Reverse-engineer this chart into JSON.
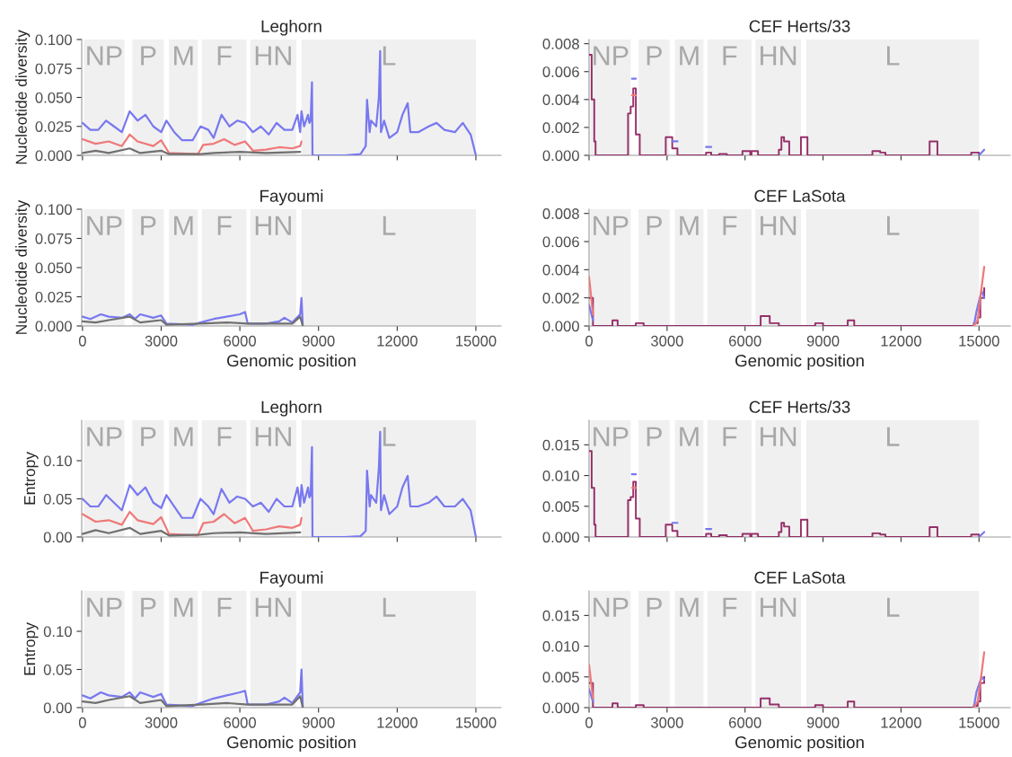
{
  "chart_data": [
    {
      "type": "line",
      "title": "Leghorn",
      "ylabel": "Nucleotide diversity",
      "xlim": [
        -30,
        15960
      ],
      "ylim": [
        0,
        0.1
      ],
      "xticks": [
        0,
        3000,
        6000,
        9000,
        12000,
        15000
      ],
      "yticks": [
        {
          "value": 0,
          "label": "0.000"
        },
        0.025,
        {
          "value": 0.05,
          "label": "0.050"
        },
        0.075,
        {
          "value": 0.1,
          "label": "0.100"
        }
      ],
      "tick_labels": "y",
      "bands": [
        {
          "axis": "x",
          "from": 50,
          "to": 1600,
          "label": "NP",
          "color": "#f0f0f0"
        },
        {
          "axis": "x",
          "from": 1900,
          "to": 3100,
          "label": "P",
          "color": "#f0f0f0"
        },
        {
          "axis": "x",
          "from": 3300,
          "to": 4400,
          "label": "M",
          "color": "#f0f0f0"
        },
        {
          "axis": "x",
          "from": 4550,
          "to": 6250,
          "label": "F",
          "color": "#f0f0f0"
        },
        {
          "axis": "x",
          "from": 6400,
          "to": 8150,
          "label": "HN",
          "color": "#f0f0f0"
        },
        {
          "axis": "x",
          "from": 8350,
          "to": 15000,
          "label": "L",
          "color": "#f0f0f0"
        }
      ],
      "series": [
        {
          "color": "#7878f0",
          "x": [
            0,
            300,
            600,
            900,
            1200,
            1500,
            1800,
            2100,
            2400,
            2700,
            3000,
            3200,
            3500,
            3800,
            4200,
            4500,
            4800,
            5000,
            5300,
            5600,
            5900,
            6200,
            6500,
            6800,
            7100,
            7400,
            7700,
            8000,
            8200,
            8300,
            8350,
            8450,
            8600,
            8650,
            8700,
            8750,
            8770,
            9000,
            10000,
            10600,
            10800,
            10850,
            10950,
            11000,
            11200,
            11300,
            11350,
            11380,
            11500,
            11700,
            12000,
            12200,
            12400,
            12500,
            12800,
            13200,
            13500,
            13800,
            14200,
            14500,
            14800,
            15000
          ],
          "values": [
            0.028,
            0.022,
            0.022,
            0.03,
            0.025,
            0.02,
            0.038,
            0.03,
            0.035,
            0.025,
            0.02,
            0.03,
            0.02,
            0.013,
            0.013,
            0.025,
            0.022,
            0.015,
            0.035,
            0.025,
            0.03,
            0.028,
            0.02,
            0.025,
            0.018,
            0.028,
            0.022,
            0.022,
            0.035,
            0.02,
            0.038,
            0.025,
            0.035,
            0.028,
            0.03,
            0.063,
            0,
            0,
            0,
            0.001,
            0.008,
            0.048,
            0.02,
            0.03,
            0.025,
            0.05,
            0.09,
            0.02,
            0.03,
            0.015,
            0.02,
            0.035,
            0.045,
            0.02,
            0.02,
            0.025,
            0.028,
            0.022,
            0.02,
            0.028,
            0.018,
            0
          ]
        },
        {
          "color": "#f07878",
          "x": [
            0,
            500,
            1000,
            1500,
            1800,
            2100,
            2700,
            3000,
            3300,
            4400,
            4600,
            5000,
            5400,
            5800,
            6200,
            6500,
            7000,
            7500,
            8000,
            8300,
            8350
          ],
          "values": [
            0.014,
            0.01,
            0.012,
            0.008,
            0.018,
            0.012,
            0.008,
            0.013,
            0.002,
            0.001,
            0.009,
            0.01,
            0.014,
            0.009,
            0.012,
            0.004,
            0.005,
            0.007,
            0.006,
            0.008,
            0.012
          ]
        },
        {
          "color": "#707070",
          "x": [
            0,
            500,
            1000,
            1800,
            2200,
            3000,
            3300,
            4500,
            5000,
            6000,
            7000,
            8300
          ],
          "values": [
            0.002,
            0.004,
            0.002,
            0.006,
            0.002,
            0.004,
            0.001,
            0.001,
            0.002,
            0.003,
            0.002,
            0.003
          ]
        }
      ]
    },
    {
      "type": "line",
      "title": "CEF Herts/33",
      "xlim": [
        0,
        16200
      ],
      "ylim": [
        0,
        0.0083
      ],
      "xticks": [
        0,
        3000,
        6000,
        9000,
        12000,
        15000
      ],
      "yticks": [
        {
          "value": 0,
          "label": "0.000"
        },
        0.002,
        0.004,
        0.006,
        0.008
      ],
      "tick_labels": "y",
      "bands": [
        {
          "axis": "x",
          "from": 50,
          "to": 1600,
          "label": "NP",
          "color": "#f0f0f0"
        },
        {
          "axis": "x",
          "from": 1900,
          "to": 3100,
          "label": "P",
          "color": "#f0f0f0"
        },
        {
          "axis": "x",
          "from": 3300,
          "to": 4400,
          "label": "M",
          "color": "#f0f0f0"
        },
        {
          "axis": "x",
          "from": 4550,
          "to": 6250,
          "label": "F",
          "color": "#f0f0f0"
        },
        {
          "axis": "x",
          "from": 6400,
          "to": 8150,
          "label": "HN",
          "color": "#f0f0f0"
        },
        {
          "axis": "x",
          "from": 8350,
          "to": 15000,
          "label": "L",
          "color": "#f0f0f0"
        }
      ],
      "series": [
        {
          "color": "#8b1a5a",
          "type": "step",
          "x": [
            0,
            100,
            200,
            250,
            1500,
            1600,
            1700,
            1800,
            1950,
            2950,
            3200,
            3400,
            4500,
            4700,
            5000,
            5300,
            5900,
            6200,
            6250,
            6500,
            7300,
            7400,
            7500,
            7700,
            8150,
            8400,
            10900,
            11200,
            11400,
            13100,
            13400,
            14700,
            15000
          ],
          "values": [
            0.0072,
            0.004,
            0.001,
            0,
            0.003,
            0.0035,
            0.0048,
            0.0015,
            0,
            0.0013,
            0.0005,
            0,
            0.0002,
            0,
            0.0001,
            0,
            0.0003,
            0,
            0.0003,
            0,
            0.0004,
            0.0013,
            0.001,
            0,
            0.0013,
            0,
            0.0003,
            0.0002,
            0,
            0.001,
            0,
            0.0002,
            0
          ]
        },
        {
          "color": "#7878f0",
          "x": [
            1650,
            1800
          ],
          "values": [
            0.0055,
            0.0055
          ]
        },
        {
          "color": "#7878f0",
          "x": [
            3200,
            3400
          ],
          "values": [
            0.001,
            0.001
          ]
        },
        {
          "color": "#7878f0",
          "x": [
            4500,
            4700
          ],
          "values": [
            0.0006,
            0.0006
          ]
        },
        {
          "color": "#7878f0",
          "x": [
            15000,
            15200
          ],
          "values": [
            0,
            0.0004
          ]
        },
        {
          "color": "#f07878",
          "x": [
            1650,
            1800
          ],
          "values": [
            0.0043,
            0.0043
          ]
        }
      ]
    },
    {
      "type": "line",
      "title": "Fayoumi",
      "ylabel": "Nucleotide diversity",
      "xlabel": "Genomic position",
      "xlim": [
        -30,
        15960
      ],
      "ylim": [
        0,
        0.1
      ],
      "xticks": [
        0,
        3000,
        6000,
        9000,
        12000,
        15000
      ],
      "yticks": [
        {
          "value": 0,
          "label": "0.000"
        },
        0.025,
        {
          "value": 0.05,
          "label": "0.050"
        },
        0.075,
        {
          "value": 0.1,
          "label": "0.100"
        }
      ],
      "bands": [
        {
          "axis": "x",
          "from": 50,
          "to": 1600,
          "label": "NP",
          "color": "#f0f0f0"
        },
        {
          "axis": "x",
          "from": 1900,
          "to": 3100,
          "label": "P",
          "color": "#f0f0f0"
        },
        {
          "axis": "x",
          "from": 3300,
          "to": 4400,
          "label": "M",
          "color": "#f0f0f0"
        },
        {
          "axis": "x",
          "from": 4550,
          "to": 6250,
          "label": "F",
          "color": "#f0f0f0"
        },
        {
          "axis": "x",
          "from": 6400,
          "to": 8150,
          "label": "HN",
          "color": "#f0f0f0"
        },
        {
          "axis": "x",
          "from": 8350,
          "to": 15000,
          "label": "L",
          "color": "#f0f0f0"
        }
      ],
      "series": [
        {
          "color": "#7878f0",
          "x": [
            0,
            300,
            700,
            1000,
            1500,
            1800,
            2000,
            2200,
            2700,
            3000,
            3200,
            4200,
            4500,
            5000,
            5500,
            6000,
            6200,
            6300,
            7000,
            7500,
            7700,
            8000,
            8300,
            8350,
            8400
          ],
          "values": [
            0.008,
            0.006,
            0.01,
            0.008,
            0.007,
            0.01,
            0.006,
            0.01,
            0.007,
            0.009,
            0.002,
            0.001,
            0.003,
            0.006,
            0.008,
            0.01,
            0.012,
            0.002,
            0.002,
            0.004,
            0.007,
            0.003,
            0.01,
            0.024,
            0
          ]
        },
        {
          "color": "#707070",
          "x": [
            0,
            500,
            1000,
            1800,
            2200,
            3000,
            3200,
            4500,
            5500,
            6300,
            8000,
            8300,
            8400
          ],
          "values": [
            0.004,
            0.003,
            0.005,
            0.008,
            0.003,
            0.005,
            0.001,
            0.002,
            0.003,
            0.002,
            0.002,
            0.008,
            0
          ]
        }
      ]
    },
    {
      "type": "line",
      "title": "CEF LaSota",
      "xlabel": "Genomic position",
      "xlim": [
        0,
        16200
      ],
      "ylim": [
        0,
        0.0083
      ],
      "xticks": [
        0,
        3000,
        6000,
        9000,
        12000,
        15000
      ],
      "yticks": [
        {
          "value": 0,
          "label": "0.000"
        },
        0.002,
        0.004,
        0.006,
        0.008
      ],
      "bands": [
        {
          "axis": "x",
          "from": 50,
          "to": 1600,
          "label": "NP",
          "color": "#f0f0f0"
        },
        {
          "axis": "x",
          "from": 1900,
          "to": 3100,
          "label": "P",
          "color": "#f0f0f0"
        },
        {
          "axis": "x",
          "from": 3300,
          "to": 4400,
          "label": "M",
          "color": "#f0f0f0"
        },
        {
          "axis": "x",
          "from": 4550,
          "to": 6250,
          "label": "F",
          "color": "#f0f0f0"
        },
        {
          "axis": "x",
          "from": 6400,
          "to": 8150,
          "label": "HN",
          "color": "#f0f0f0"
        },
        {
          "axis": "x",
          "from": 8350,
          "to": 15000,
          "label": "L",
          "color": "#f0f0f0"
        }
      ],
      "series": [
        {
          "color": "#8b1a5a",
          "type": "step",
          "x": [
            0,
            150,
            900,
            1100,
            1800,
            2100,
            6600,
            6950,
            7300,
            8700,
            9000,
            9950,
            10200,
            14800,
            14950,
            15050,
            15200
          ],
          "values": [
            0.002,
            0,
            0.0004,
            0,
            0.0002,
            0,
            0.0007,
            0.0002,
            0,
            0.0002,
            0,
            0.0004,
            0,
            0.0002,
            0.0006,
            0.002,
            0.0027
          ]
        },
        {
          "color": "#7878f0",
          "x": [
            0,
            150
          ],
          "values": [
            0.0015,
            0.0004
          ]
        },
        {
          "color": "#7878f0",
          "x": [
            14800,
            14900,
            15100,
            15200
          ],
          "values": [
            0,
            0.001,
            0.0025,
            0.002
          ]
        },
        {
          "color": "#f07878",
          "x": [
            0,
            150
          ],
          "values": [
            0.0035,
            0.0008
          ]
        },
        {
          "color": "#f07878",
          "x": [
            14800,
            14950,
            15050,
            15200
          ],
          "values": [
            0,
            0.0004,
            0.002,
            0.0042
          ]
        }
      ]
    },
    {
      "type": "line",
      "title": "Leghorn",
      "ylabel": "Entropy",
      "xlim": [
        -30,
        15960
      ],
      "ylim": [
        0,
        0.153
      ],
      "xticks": [
        0,
        3000,
        6000,
        9000,
        12000,
        15000
      ],
      "yticks": [
        {
          "value": 0,
          "label": "0.00"
        },
        0.05,
        {
          "value": 0.1,
          "label": "0.10"
        }
      ],
      "tick_labels": "y",
      "bands": [
        {
          "axis": "x",
          "from": 50,
          "to": 1600,
          "label": "NP",
          "color": "#f0f0f0"
        },
        {
          "axis": "x",
          "from": 1900,
          "to": 3100,
          "label": "P",
          "color": "#f0f0f0"
        },
        {
          "axis": "x",
          "from": 3300,
          "to": 4400,
          "label": "M",
          "color": "#f0f0f0"
        },
        {
          "axis": "x",
          "from": 4550,
          "to": 6250,
          "label": "F",
          "color": "#f0f0f0"
        },
        {
          "axis": "x",
          "from": 6400,
          "to": 8150,
          "label": "HN",
          "color": "#f0f0f0"
        },
        {
          "axis": "x",
          "from": 8350,
          "to": 15000,
          "label": "L",
          "color": "#f0f0f0"
        }
      ],
      "series": [
        {
          "color": "#7878f0",
          "x": [
            0,
            300,
            600,
            900,
            1200,
            1500,
            1800,
            2100,
            2400,
            2700,
            3000,
            3200,
            3500,
            3800,
            4200,
            4500,
            4800,
            5000,
            5300,
            5600,
            5900,
            6200,
            6500,
            6800,
            7100,
            7400,
            7700,
            8000,
            8200,
            8300,
            8350,
            8450,
            8600,
            8650,
            8700,
            8750,
            8770,
            9000,
            10000,
            10600,
            10800,
            10850,
            10950,
            11000,
            11200,
            11300,
            11350,
            11380,
            11500,
            11700,
            12000,
            12200,
            12400,
            12500,
            12800,
            13200,
            13500,
            13800,
            14200,
            14500,
            14800,
            15000
          ],
          "values": [
            0.05,
            0.04,
            0.04,
            0.055,
            0.045,
            0.035,
            0.068,
            0.055,
            0.065,
            0.045,
            0.038,
            0.055,
            0.04,
            0.025,
            0.025,
            0.05,
            0.04,
            0.03,
            0.063,
            0.045,
            0.053,
            0.05,
            0.04,
            0.045,
            0.033,
            0.05,
            0.04,
            0.04,
            0.065,
            0.04,
            0.068,
            0.045,
            0.065,
            0.052,
            0.055,
            0.118,
            0,
            0,
            0,
            0.001,
            0.008,
            0.087,
            0.04,
            0.055,
            0.045,
            0.09,
            0.138,
            0.035,
            0.055,
            0.03,
            0.04,
            0.065,
            0.08,
            0.04,
            0.04,
            0.045,
            0.053,
            0.04,
            0.04,
            0.05,
            0.035,
            0
          ]
        },
        {
          "color": "#f07878",
          "x": [
            0,
            500,
            1000,
            1500,
            1800,
            2100,
            2700,
            3000,
            3300,
            4400,
            4600,
            5000,
            5400,
            5800,
            6200,
            6500,
            7000,
            7500,
            8000,
            8300,
            8350
          ],
          "values": [
            0.03,
            0.02,
            0.022,
            0.016,
            0.033,
            0.022,
            0.017,
            0.026,
            0.004,
            0.002,
            0.018,
            0.02,
            0.03,
            0.018,
            0.025,
            0.008,
            0.01,
            0.014,
            0.012,
            0.016,
            0.025
          ]
        },
        {
          "color": "#707070",
          "x": [
            0,
            500,
            1000,
            1800,
            2200,
            3000,
            3300,
            4500,
            5000,
            6000,
            7000,
            8300
          ],
          "values": [
            0.004,
            0.009,
            0.005,
            0.012,
            0.004,
            0.008,
            0.002,
            0.003,
            0.005,
            0.006,
            0.004,
            0.006
          ]
        }
      ]
    },
    {
      "type": "line",
      "title": "CEF Herts/33",
      "xlim": [
        0,
        16200
      ],
      "ylim": [
        0,
        0.019
      ],
      "xticks": [
        0,
        3000,
        6000,
        9000,
        12000,
        15000
      ],
      "yticks": [
        {
          "value": 0,
          "label": "0.000"
        },
        0.005,
        {
          "value": 0.01,
          "label": "0.010"
        },
        0.015
      ],
      "tick_labels": "y",
      "bands": [
        {
          "axis": "x",
          "from": 50,
          "to": 1600,
          "label": "NP",
          "color": "#f0f0f0"
        },
        {
          "axis": "x",
          "from": 1900,
          "to": 3100,
          "label": "P",
          "color": "#f0f0f0"
        },
        {
          "axis": "x",
          "from": 3300,
          "to": 4400,
          "label": "M",
          "color": "#f0f0f0"
        },
        {
          "axis": "x",
          "from": 4550,
          "to": 6250,
          "label": "F",
          "color": "#f0f0f0"
        },
        {
          "axis": "x",
          "from": 6400,
          "to": 8150,
          "label": "HN",
          "color": "#f0f0f0"
        },
        {
          "axis": "x",
          "from": 8350,
          "to": 15000,
          "label": "L",
          "color": "#f0f0f0"
        }
      ],
      "series": [
        {
          "color": "#8b1a5a",
          "type": "step",
          "x": [
            0,
            100,
            200,
            250,
            1500,
            1600,
            1700,
            1800,
            1950,
            2950,
            3200,
            3400,
            4500,
            4700,
            5000,
            5300,
            5900,
            6200,
            6250,
            6500,
            7300,
            7400,
            7500,
            7700,
            8150,
            8400,
            10900,
            11200,
            11400,
            13100,
            13400,
            14700,
            15000
          ],
          "values": [
            0.014,
            0.008,
            0.002,
            0,
            0.006,
            0.0065,
            0.009,
            0.003,
            0,
            0.002,
            0.001,
            0,
            0.0005,
            0,
            0.0003,
            0,
            0.0005,
            0,
            0.0005,
            0,
            0.0008,
            0.0023,
            0.0017,
            0,
            0.0028,
            0,
            0.0006,
            0.0004,
            0,
            0.0016,
            0,
            0.0004,
            0
          ]
        },
        {
          "color": "#7878f0",
          "x": [
            1650,
            1800
          ],
          "values": [
            0.0102,
            0.0102
          ]
        },
        {
          "color": "#7878f0",
          "x": [
            3200,
            3400
          ],
          "values": [
            0.0023,
            0.0023
          ]
        },
        {
          "color": "#7878f0",
          "x": [
            4500,
            4700
          ],
          "values": [
            0.0013,
            0.0013
          ]
        },
        {
          "color": "#7878f0",
          "x": [
            15000,
            15200
          ],
          "values": [
            0,
            0.0008
          ]
        },
        {
          "color": "#f07878",
          "x": [
            1650,
            1800
          ],
          "values": [
            0.008,
            0.008
          ]
        }
      ]
    },
    {
      "type": "line",
      "title": "Fayoumi",
      "ylabel": "Entropy",
      "xlabel": "Genomic position",
      "xlim": [
        -30,
        15960
      ],
      "ylim": [
        0,
        0.153
      ],
      "xticks": [
        0,
        3000,
        6000,
        9000,
        12000,
        15000
      ],
      "yticks": [
        {
          "value": 0,
          "label": "0.00"
        },
        0.05,
        {
          "value": 0.1,
          "label": "0.10"
        }
      ],
      "bands": [
        {
          "axis": "x",
          "from": 50,
          "to": 1600,
          "label": "NP",
          "color": "#f0f0f0"
        },
        {
          "axis": "x",
          "from": 1900,
          "to": 3100,
          "label": "P",
          "color": "#f0f0f0"
        },
        {
          "axis": "x",
          "from": 3300,
          "to": 4400,
          "label": "M",
          "color": "#f0f0f0"
        },
        {
          "axis": "x",
          "from": 4550,
          "to": 6250,
          "label": "F",
          "color": "#f0f0f0"
        },
        {
          "axis": "x",
          "from": 6400,
          "to": 8150,
          "label": "HN",
          "color": "#f0f0f0"
        },
        {
          "axis": "x",
          "from": 8350,
          "to": 15000,
          "label": "L",
          "color": "#f0f0f0"
        }
      ],
      "series": [
        {
          "color": "#7878f0",
          "x": [
            0,
            300,
            700,
            1000,
            1500,
            1800,
            2000,
            2200,
            2700,
            3000,
            3200,
            4200,
            4500,
            5000,
            5500,
            6000,
            6200,
            6300,
            7000,
            7500,
            7700,
            8000,
            8300,
            8350,
            8400
          ],
          "values": [
            0.016,
            0.012,
            0.02,
            0.016,
            0.014,
            0.02,
            0.012,
            0.02,
            0.014,
            0.018,
            0.004,
            0.002,
            0.006,
            0.012,
            0.016,
            0.02,
            0.022,
            0.004,
            0.004,
            0.008,
            0.013,
            0.006,
            0.02,
            0.05,
            0
          ]
        },
        {
          "color": "#707070",
          "x": [
            0,
            500,
            1000,
            1800,
            2200,
            3000,
            3200,
            4500,
            5500,
            6300,
            8000,
            8300,
            8400
          ],
          "values": [
            0.008,
            0.006,
            0.01,
            0.015,
            0.006,
            0.01,
            0.002,
            0.004,
            0.006,
            0.004,
            0.004,
            0.015,
            0
          ]
        }
      ]
    },
    {
      "type": "line",
      "title": "CEF LaSota",
      "xlabel": "Genomic position",
      "xlim": [
        0,
        16200
      ],
      "ylim": [
        0,
        0.019
      ],
      "xticks": [
        0,
        3000,
        6000,
        9000,
        12000,
        15000
      ],
      "yticks": [
        {
          "value": 0,
          "label": "0.000"
        },
        0.005,
        {
          "value": 0.01,
          "label": "0.010"
        },
        0.015
      ],
      "bands": [
        {
          "axis": "x",
          "from": 50,
          "to": 1600,
          "label": "NP",
          "color": "#f0f0f0"
        },
        {
          "axis": "x",
          "from": 1900,
          "to": 3100,
          "label": "P",
          "color": "#f0f0f0"
        },
        {
          "axis": "x",
          "from": 3300,
          "to": 4400,
          "label": "M",
          "color": "#f0f0f0"
        },
        {
          "axis": "x",
          "from": 4550,
          "to": 6250,
          "label": "F",
          "color": "#f0f0f0"
        },
        {
          "axis": "x",
          "from": 6400,
          "to": 8150,
          "label": "HN",
          "color": "#f0f0f0"
        },
        {
          "axis": "x",
          "from": 8350,
          "to": 15000,
          "label": "L",
          "color": "#f0f0f0"
        }
      ],
      "series": [
        {
          "color": "#8b1a5a",
          "type": "step",
          "x": [
            0,
            150,
            900,
            1100,
            1800,
            2100,
            6600,
            6950,
            7300,
            8700,
            9000,
            9950,
            10200,
            14800,
            14950,
            15050,
            15200
          ],
          "values": [
            0.004,
            0,
            0.0007,
            0,
            0.0004,
            0,
            0.0015,
            0.0005,
            0,
            0.0004,
            0,
            0.001,
            0,
            0.0003,
            0.001,
            0.004,
            0.005
          ]
        },
        {
          "color": "#7878f0",
          "x": [
            0,
            150
          ],
          "values": [
            0.003,
            0.001
          ]
        },
        {
          "color": "#7878f0",
          "x": [
            14800,
            14900,
            15100,
            15200
          ],
          "values": [
            0,
            0.0025,
            0.005,
            0.0045
          ]
        },
        {
          "color": "#f07878",
          "x": [
            0,
            150
          ],
          "values": [
            0.007,
            0.0015
          ]
        },
        {
          "color": "#f07878",
          "x": [
            14800,
            14950,
            15050,
            15200
          ],
          "values": [
            0,
            0.001,
            0.004,
            0.009
          ]
        }
      ]
    }
  ]
}
